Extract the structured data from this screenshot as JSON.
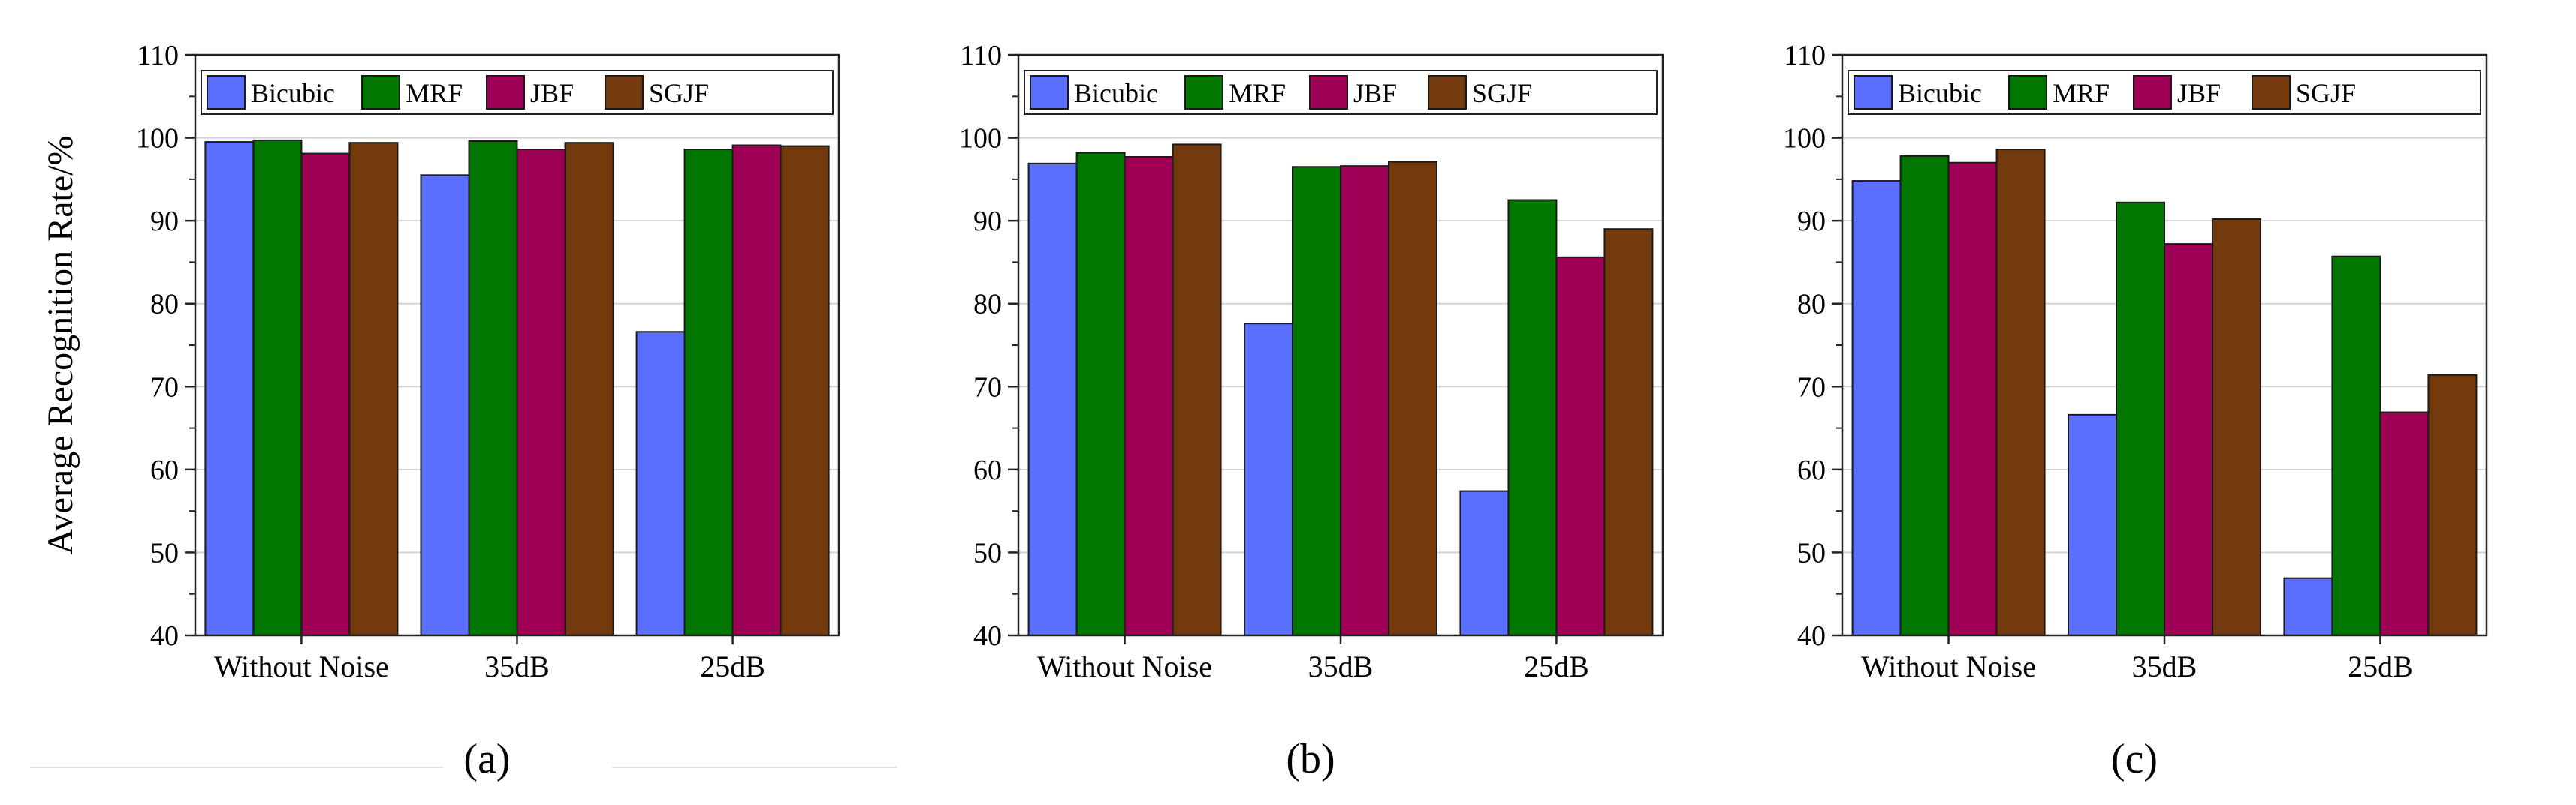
{
  "chart_data": [
    {
      "type": "bar",
      "panel_label": "(a)",
      "ylabel": "Average Recognition Rate/%",
      "xlabel": "",
      "ylim": [
        40,
        110
      ],
      "yticks": [
        40,
        50,
        60,
        70,
        80,
        90,
        100,
        110
      ],
      "categories": [
        "Without Noise",
        "35dB",
        "25dB"
      ],
      "legend_position": "top",
      "grid": true,
      "series": [
        {
          "name": "Bicubic",
          "color": "#5B6FFF",
          "values": [
            99.5,
            95.5,
            76.6
          ]
        },
        {
          "name": "MRF",
          "color": "#007500",
          "values": [
            99.7,
            99.6,
            98.6
          ]
        },
        {
          "name": "JBF",
          "color": "#9E0056",
          "values": [
            98.1,
            98.6,
            99.1
          ]
        },
        {
          "name": "SGJF",
          "color": "#71390C",
          "values": [
            99.4,
            99.4,
            99.0
          ]
        }
      ]
    },
    {
      "type": "bar",
      "panel_label": "(b)",
      "ylabel": "",
      "xlabel": "",
      "ylim": [
        40,
        110
      ],
      "yticks": [
        40,
        50,
        60,
        70,
        80,
        90,
        100,
        110
      ],
      "categories": [
        "Without Noise",
        "35dB",
        "25dB"
      ],
      "legend_position": "top",
      "grid": true,
      "series": [
        {
          "name": "Bicubic",
          "color": "#5B6FFF",
          "values": [
            96.9,
            77.6,
            57.4
          ]
        },
        {
          "name": "MRF",
          "color": "#007500",
          "values": [
            98.2,
            96.5,
            92.5
          ]
        },
        {
          "name": "JBF",
          "color": "#9E0056",
          "values": [
            97.7,
            96.6,
            85.6
          ]
        },
        {
          "name": "SGJF",
          "color": "#71390C",
          "values": [
            99.2,
            97.1,
            89.0
          ]
        }
      ]
    },
    {
      "type": "bar",
      "panel_label": "(c)",
      "ylabel": "",
      "xlabel": "",
      "ylim": [
        40,
        110
      ],
      "yticks": [
        40,
        50,
        60,
        70,
        80,
        90,
        100,
        110
      ],
      "categories": [
        "Without Noise",
        "35dB",
        "25dB"
      ],
      "legend_position": "top",
      "grid": true,
      "series": [
        {
          "name": "Bicubic",
          "color": "#5B6FFF",
          "values": [
            94.8,
            66.6,
            46.9
          ]
        },
        {
          "name": "MRF",
          "color": "#007500",
          "values": [
            97.8,
            92.2,
            85.7
          ]
        },
        {
          "name": "JBF",
          "color": "#9E0056",
          "values": [
            97.0,
            87.2,
            66.9
          ]
        },
        {
          "name": "SGJF",
          "color": "#71390C",
          "values": [
            98.6,
            90.2,
            71.4
          ]
        }
      ]
    }
  ]
}
